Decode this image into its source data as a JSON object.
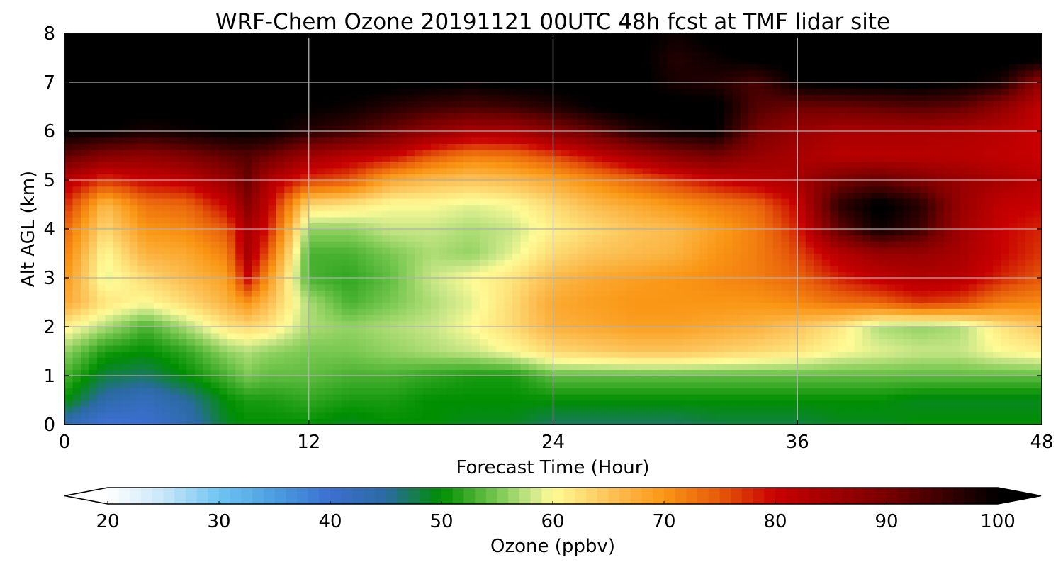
{
  "chart_data": {
    "type": "heatmap",
    "title": "WRF-Chem Ozone 20191121 00UTC 48h fcst at TMF lidar site",
    "xlabel": "Forecast Time (Hour)",
    "ylabel": "Alt AGL (km)",
    "xlim": [
      0,
      48
    ],
    "ylim": [
      0,
      8
    ],
    "xticks": [
      "0",
      "12",
      "24",
      "36",
      "48"
    ],
    "yticks": [
      "0",
      "1",
      "2",
      "3",
      "4",
      "5",
      "6",
      "7",
      "8"
    ],
    "grid": true,
    "x_hours": [
      0,
      2,
      4,
      6,
      8,
      9,
      10,
      12,
      14,
      16,
      18,
      20,
      22,
      24,
      26,
      28,
      30,
      32,
      34,
      36,
      38,
      40,
      42,
      44,
      46,
      48
    ],
    "alt_km": [
      0,
      0.5,
      1,
      1.5,
      2,
      2.5,
      3,
      3.5,
      4,
      4.5,
      5,
      5.5,
      6,
      6.5,
      7,
      7.5,
      8
    ],
    "ozone_ppbv": [
      [
        43,
        39,
        40,
        43,
        49,
        50,
        50,
        50,
        49,
        50,
        50,
        49,
        49,
        47,
        47,
        47,
        47,
        48,
        48,
        48,
        49,
        49,
        50,
        50,
        50,
        50
      ],
      [
        50,
        44,
        42,
        45,
        50,
        51,
        51,
        52,
        51,
        51,
        50,
        50,
        50,
        50,
        50,
        50,
        50,
        50,
        50,
        50,
        50,
        50,
        49,
        49,
        49,
        49
      ],
      [
        53,
        48,
        47,
        50,
        53,
        55,
        54,
        54,
        53,
        53,
        52,
        51,
        51,
        54,
        54,
        54,
        54,
        54,
        54,
        54,
        54,
        54,
        54,
        54,
        54,
        54
      ],
      [
        56,
        51,
        50,
        52,
        56,
        57,
        56,
        55,
        55,
        56,
        57,
        58,
        60,
        63,
        64,
        65,
        65,
        64,
        63,
        62,
        60,
        59,
        58,
        58,
        60,
        61
      ],
      [
        61,
        57,
        53,
        57,
        62,
        63,
        62,
        57,
        56,
        57,
        58,
        60,
        63,
        67,
        68,
        69,
        69,
        68,
        67,
        65,
        62,
        57,
        56,
        57,
        62,
        65
      ],
      [
        68,
        62,
        60,
        63,
        67,
        70,
        66,
        57,
        53,
        55,
        57,
        59,
        63,
        68,
        69,
        70,
        70,
        70,
        70,
        71,
        73,
        74,
        77,
        76,
        72,
        71
      ],
      [
        70,
        59,
        63,
        66,
        69,
        80,
        70,
        53,
        52,
        54,
        58,
        60,
        62,
        66,
        68,
        69,
        70,
        71,
        72,
        74,
        78,
        81,
        83,
        82,
        78,
        75
      ],
      [
        72,
        60,
        67,
        68,
        72,
        84,
        75,
        53,
        53,
        55,
        57,
        56,
        59,
        63,
        65,
        66,
        67,
        70,
        72,
        76,
        82,
        86,
        86,
        84,
        80,
        77
      ],
      [
        74,
        63,
        70,
        71,
        75,
        84,
        79,
        56,
        56,
        58,
        58,
        57,
        58,
        61,
        63,
        65,
        66,
        69,
        72,
        78,
        92,
        99,
        95,
        85,
        80,
        78
      ],
      [
        78,
        66,
        73,
        74,
        80,
        88,
        81,
        63,
        62,
        60,
        60,
        59,
        60,
        63,
        66,
        68,
        70,
        72,
        74,
        80,
        96,
        101,
        97,
        86,
        81,
        80
      ],
      [
        82,
        77,
        80,
        81,
        86,
        91,
        83,
        77,
        75,
        68,
        66,
        65,
        66,
        68,
        71,
        74,
        77,
        80,
        82,
        84,
        90,
        92,
        89,
        86,
        84,
        82
      ],
      [
        92,
        88,
        87,
        89,
        92,
        93,
        91,
        85,
        82,
        80,
        75,
        72,
        73,
        76,
        80,
        84,
        88,
        90,
        86,
        84,
        82,
        82,
        82,
        82,
        81,
        80
      ],
      [
        100,
        100,
        98,
        99,
        100,
        100,
        100,
        97,
        95,
        91,
        87,
        84,
        84,
        88,
        92,
        97,
        99,
        100,
        90,
        86,
        84,
        84,
        84,
        83,
        82,
        80
      ],
      [
        101,
        101,
        101,
        101,
        101,
        101,
        101,
        100,
        99,
        97,
        95,
        94,
        95,
        97,
        100,
        101,
        101,
        101,
        93,
        91,
        91,
        92,
        93,
        92,
        87,
        81
      ],
      [
        101,
        101,
        101,
        101,
        101,
        101,
        101,
        101,
        101,
        101,
        101,
        100,
        101,
        101,
        101,
        101,
        98,
        97,
        94,
        100,
        101,
        101,
        101,
        100,
        98,
        86
      ],
      [
        101,
        101,
        101,
        101,
        101,
        101,
        101,
        101,
        101,
        101,
        101,
        101,
        101,
        101,
        101,
        101,
        97,
        99,
        101,
        101,
        101,
        101,
        101,
        101,
        101,
        101
      ],
      [
        101,
        101,
        101,
        101,
        101,
        101,
        101,
        101,
        101,
        101,
        101,
        101,
        101,
        101,
        101,
        101,
        99,
        101,
        101,
        101,
        101,
        101,
        101,
        101,
        101,
        101
      ]
    ],
    "colorbar": {
      "label": "Ozone  (ppbv)",
      "range": [
        20,
        100
      ],
      "ticks": [
        "20",
        "30",
        "40",
        "50",
        "60",
        "70",
        "80",
        "90",
        "100"
      ],
      "extend": "both",
      "stops": [
        {
          "v": 20,
          "c": "#ffffff"
        },
        {
          "v": 25,
          "c": "#c8e6f8"
        },
        {
          "v": 30,
          "c": "#6ec5f2"
        },
        {
          "v": 35,
          "c": "#4a9ee0"
        },
        {
          "v": 40,
          "c": "#3c6fcf"
        },
        {
          "v": 45,
          "c": "#2a6aa2"
        },
        {
          "v": 50,
          "c": "#008f00"
        },
        {
          "v": 55,
          "c": "#78c850"
        },
        {
          "v": 58,
          "c": "#c8e687"
        },
        {
          "v": 60,
          "c": "#fffb96"
        },
        {
          "v": 65,
          "c": "#fcc45a"
        },
        {
          "v": 70,
          "c": "#fa9614"
        },
        {
          "v": 75,
          "c": "#e65a0a"
        },
        {
          "v": 80,
          "c": "#c80000"
        },
        {
          "v": 90,
          "c": "#780000"
        },
        {
          "v": 100,
          "c": "#000000"
        }
      ]
    }
  }
}
